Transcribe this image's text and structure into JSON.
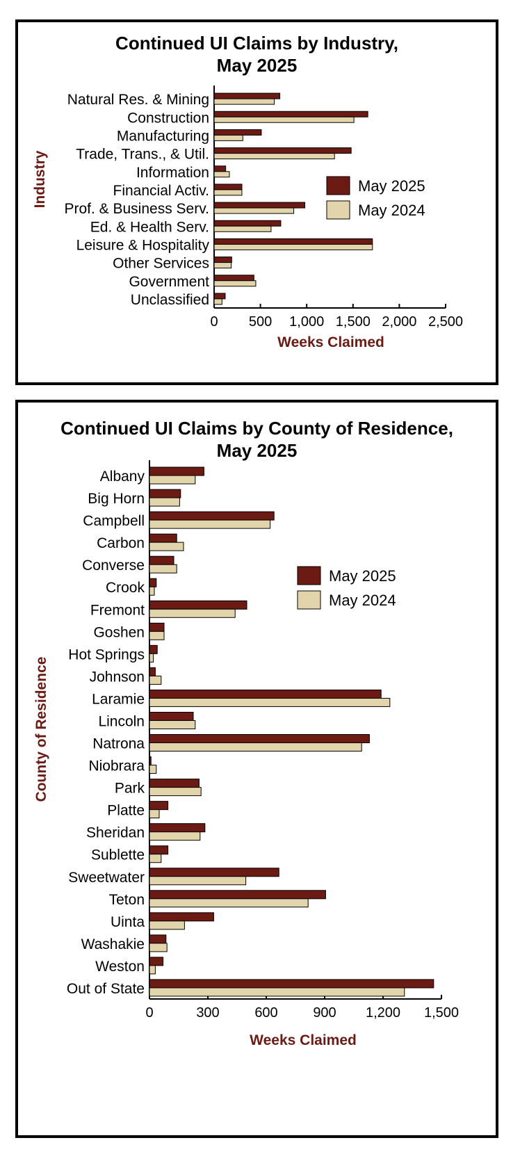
{
  "colors": {
    "may2025": "#6b1a14",
    "may2024": "#e3d5ab",
    "axis_title": "#6b1a14",
    "bar_stroke": "#000000"
  },
  "chart_data": [
    {
      "type": "bar",
      "orientation": "horizontal",
      "title_line1": "Continued UI Claims by Industry,",
      "title_line2": "May 2025",
      "xlabel": "Weeks Claimed",
      "ylabel": "Industry",
      "xlim": [
        0,
        2500
      ],
      "xticks": [
        0,
        500,
        1000,
        1500,
        2000,
        2500
      ],
      "xtick_labels": [
        "0",
        "500",
        "1,000",
        "1,500",
        "2,000",
        "2,500"
      ],
      "legend_position": "right",
      "categories": [
        "Natural Res. & Mining",
        "Construction",
        "Manufacturing",
        "Trade, Trans., & Util.",
        "Information",
        "Financial Activ.",
        "Prof. & Business Serv.",
        "Ed. & Health Serv.",
        "Leisure & Hospitality",
        "Other Services",
        "Government",
        "Unclassified"
      ],
      "series": [
        {
          "name": "May 2025",
          "values": [
            710,
            1660,
            510,
            1480,
            125,
            300,
            980,
            720,
            1710,
            190,
            430,
            120
          ]
        },
        {
          "name": "May 2024",
          "values": [
            650,
            1510,
            310,
            1300,
            165,
            300,
            860,
            615,
            1710,
            185,
            450,
            85
          ]
        }
      ]
    },
    {
      "type": "bar",
      "orientation": "horizontal",
      "title_line1": "Continued UI Claims by County of Residence,",
      "title_line2": "May 2025",
      "xlabel": "Weeks Claimed",
      "ylabel": "County of Residence",
      "xlim": [
        0,
        1500
      ],
      "xticks": [
        0,
        300,
        600,
        900,
        1200,
        1500
      ],
      "xtick_labels": [
        "0",
        "300",
        "600",
        "900",
        "1,200",
        "1,500"
      ],
      "legend_position": "right",
      "categories": [
        "Albany",
        "Big Horn",
        "Campbell",
        "Carbon",
        "Converse",
        "Crook",
        "Fremont",
        "Goshen",
        "Hot Springs",
        "Johnson",
        "Laramie",
        "Lincoln",
        "Natrona",
        "Niobrara",
        "Park",
        "Platte",
        "Sheridan",
        "Sublette",
        "Sweetwater",
        "Teton",
        "Uinta",
        "Washakie",
        "Weston",
        "Out of State"
      ],
      "series": [
        {
          "name": "May 2025",
          "values": [
            280,
            160,
            640,
            140,
            125,
            35,
            500,
            75,
            40,
            30,
            1190,
            225,
            1130,
            8,
            255,
            95,
            285,
            95,
            665,
            905,
            330,
            85,
            70,
            1460
          ]
        },
        {
          "name": "May 2024",
          "values": [
            235,
            155,
            620,
            175,
            140,
            25,
            440,
            75,
            20,
            60,
            1235,
            235,
            1090,
            35,
            265,
            50,
            260,
            60,
            495,
            815,
            180,
            90,
            30,
            1310
          ]
        }
      ]
    }
  ]
}
